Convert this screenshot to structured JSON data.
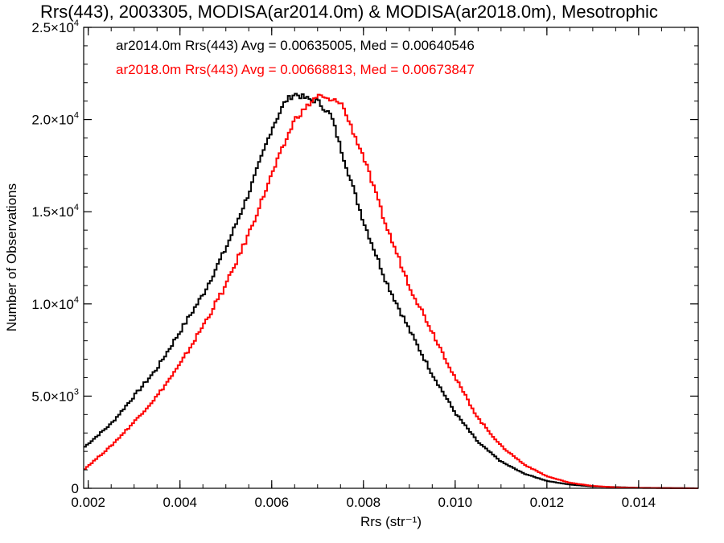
{
  "chart_data": {
    "type": "line",
    "title": "Rrs(443), 2003305, MODISA(ar2014.0m) & MODISA(ar2018.0m), Mesotrophic",
    "xlabel": "Rrs (str⁻¹)",
    "ylabel": "Number of Observations",
    "xlim": [
      0.0019,
      0.0153
    ],
    "ylim": [
      0,
      25000
    ],
    "x_ticks": [
      {
        "value": 0.002,
        "label": "0.002"
      },
      {
        "value": 0.004,
        "label": "0.004"
      },
      {
        "value": 0.006,
        "label": "0.006"
      },
      {
        "value": 0.008,
        "label": "0.008"
      },
      {
        "value": 0.01,
        "label": "0.010"
      },
      {
        "value": 0.012,
        "label": "0.012"
      },
      {
        "value": 0.014,
        "label": "0.014"
      }
    ],
    "y_ticks": [
      {
        "value": 0,
        "mant": "0",
        "exp": ""
      },
      {
        "value": 5000,
        "mant": "5.0×10",
        "exp": "3"
      },
      {
        "value": 10000,
        "mant": "1.0×10",
        "exp": "4"
      },
      {
        "value": 15000,
        "mant": "1.5×10",
        "exp": "4"
      },
      {
        "value": 20000,
        "mant": "2.0×10",
        "exp": "4"
      },
      {
        "value": 25000,
        "mant": "2.5×10",
        "exp": "4"
      }
    ],
    "grid": false,
    "legend_position": "top-left",
    "series": [
      {
        "name": "ar2014.0m",
        "legend": "ar2014.0m Rrs(443) Avg = 0.00635005, Med = 0.00640546",
        "color": "#000000",
        "x": [
          0.0019,
          0.0025,
          0.003,
          0.0035,
          0.004,
          0.0045,
          0.005,
          0.0055,
          0.006,
          0.0063,
          0.0065,
          0.0068,
          0.007,
          0.0073,
          0.0075,
          0.008,
          0.0085,
          0.009,
          0.0095,
          0.01,
          0.0105,
          0.011,
          0.0115,
          0.012,
          0.0125,
          0.013,
          0.014,
          0.0153
        ],
        "y": [
          2200,
          3500,
          5000,
          6500,
          8500,
          10500,
          13000,
          16000,
          19500,
          21000,
          21400,
          21100,
          21000,
          20200,
          18500,
          14500,
          11200,
          8600,
          6200,
          4100,
          2500,
          1450,
          800,
          400,
          200,
          100,
          30,
          0
        ]
      },
      {
        "name": "ar2018.0m",
        "legend": "ar2018.0m Rrs(443) Avg = 0.00668813, Med = 0.00673847",
        "color": "#ff0000",
        "x": [
          0.0019,
          0.0025,
          0.003,
          0.0035,
          0.004,
          0.0045,
          0.005,
          0.0055,
          0.006,
          0.0065,
          0.007,
          0.0073,
          0.0075,
          0.008,
          0.0085,
          0.009,
          0.0095,
          0.01,
          0.0105,
          0.011,
          0.0115,
          0.012,
          0.0125,
          0.013,
          0.0135,
          0.014,
          0.0153
        ],
        "y": [
          1000,
          2300,
          3600,
          5000,
          6700,
          8800,
          11000,
          13800,
          17000,
          20000,
          21300,
          21000,
          21000,
          18000,
          14200,
          11000,
          8500,
          6000,
          3800,
          2300,
          1300,
          650,
          300,
          130,
          50,
          20,
          0
        ]
      }
    ]
  }
}
